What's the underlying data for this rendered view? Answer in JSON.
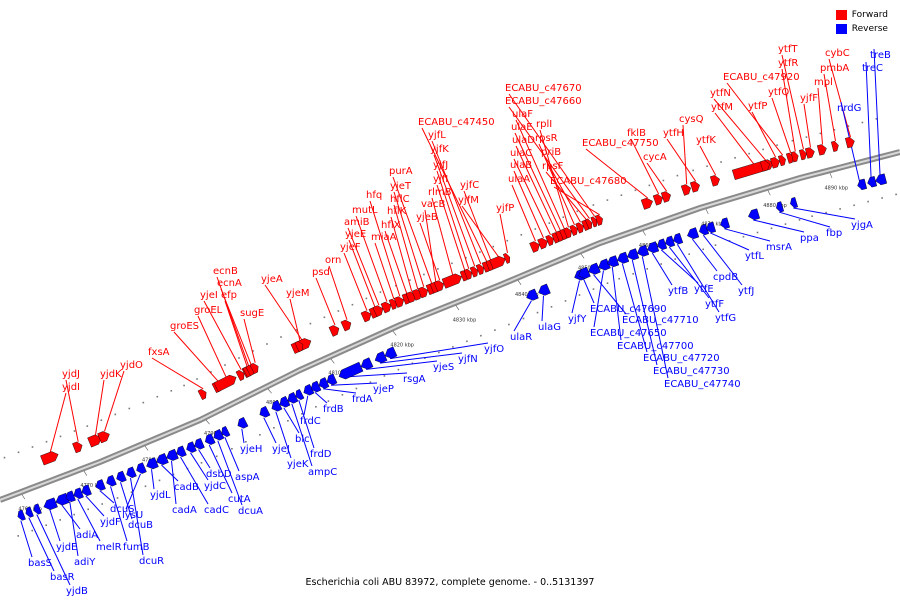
{
  "legend": {
    "forward": {
      "label": "Forward",
      "color": "#ff0000"
    },
    "reverse": {
      "label": "Reverse",
      "color": "#0000ff"
    }
  },
  "caption": "Escherichia coli ABU 83972, complete genome. - 0..5131397",
  "axis": {
    "ticks": [
      "4760 kbp",
      "4770 kbp",
      "4780 kbp",
      "4790 kbp",
      "4800 kbp",
      "4810 kbp",
      "4820 kbp",
      "4830 kbp",
      "4840 kbp",
      "4850 kbp",
      "4860 kbp",
      "4870 kbp",
      "4880 kbp",
      "4890 kbp"
    ]
  },
  "forward_genes": [
    "yjdI",
    "yjdJ",
    "yjdK",
    "yjdO",
    "fxsA",
    "groES",
    "groEL",
    "yjeI",
    "efp",
    "ecnB",
    "ecnA",
    "sugE",
    "yjeA",
    "yjeM",
    "psd",
    "orn",
    "yjeF",
    "yjeE",
    "amiB",
    "mutL",
    "miaA",
    "hfq",
    "hflX",
    "hflK",
    "hflC",
    "yjeT",
    "purA",
    "vacB",
    "yjeB",
    "rlmB",
    "yjfI",
    "yjfJ",
    "yjfK",
    "yjfL",
    "ECABU_c47450",
    "yjfC",
    "yjfM",
    "yjfP",
    "ulaA",
    "ulaB",
    "ulaC",
    "ulaD",
    "ulaE",
    "ulaF",
    "rplI",
    "rpsR",
    "priB",
    "rpsF",
    "ECABU_c47660",
    "ECABU_c47670",
    "ECABU_c47680",
    "ECABU_c47750",
    "fklB",
    "cycA",
    "cysQ",
    "ytfH",
    "ytfK",
    "ytfM",
    "ytfN",
    "ytfP",
    "ECABU_c47920",
    "ytfQ",
    "ytfR",
    "ytfT",
    "yjfF",
    "mpl",
    "pmbA",
    "cybC"
  ],
  "reverse_genes": [
    "basS",
    "basR",
    "yjdB",
    "yjdE",
    "adiA",
    "adiY",
    "melR",
    "yjdF",
    "dcuS",
    "fumB",
    "dcuB",
    "dcuR",
    "lysU",
    "yjdL",
    "cadB",
    "cadA",
    "cadC",
    "yjdC",
    "dsbD",
    "cutA",
    "dcuA",
    "aspA",
    "yjeH",
    "yjeJ",
    "yjeK",
    "blc",
    "ampC",
    "frdD",
    "frdC",
    "frdB",
    "frdA",
    "yjeP",
    "rsgA",
    "yjeS",
    "yjfN",
    "yjfO",
    "ulaR",
    "ulaG",
    "yjfY",
    "ECABU_c47690",
    "ECABU_c47710",
    "ECABU_c47650",
    "ECABU_c47700",
    "ECABU_c47720",
    "ECABU_c47730",
    "ECABU_c47740",
    "ytfB",
    "ytfE",
    "ytfF",
    "ytfG",
    "cpdB",
    "ytfJ",
    "ytfL",
    "msrA",
    "ppa",
    "fbp",
    "yjgA",
    "nrdG",
    "treC",
    "treB"
  ]
}
